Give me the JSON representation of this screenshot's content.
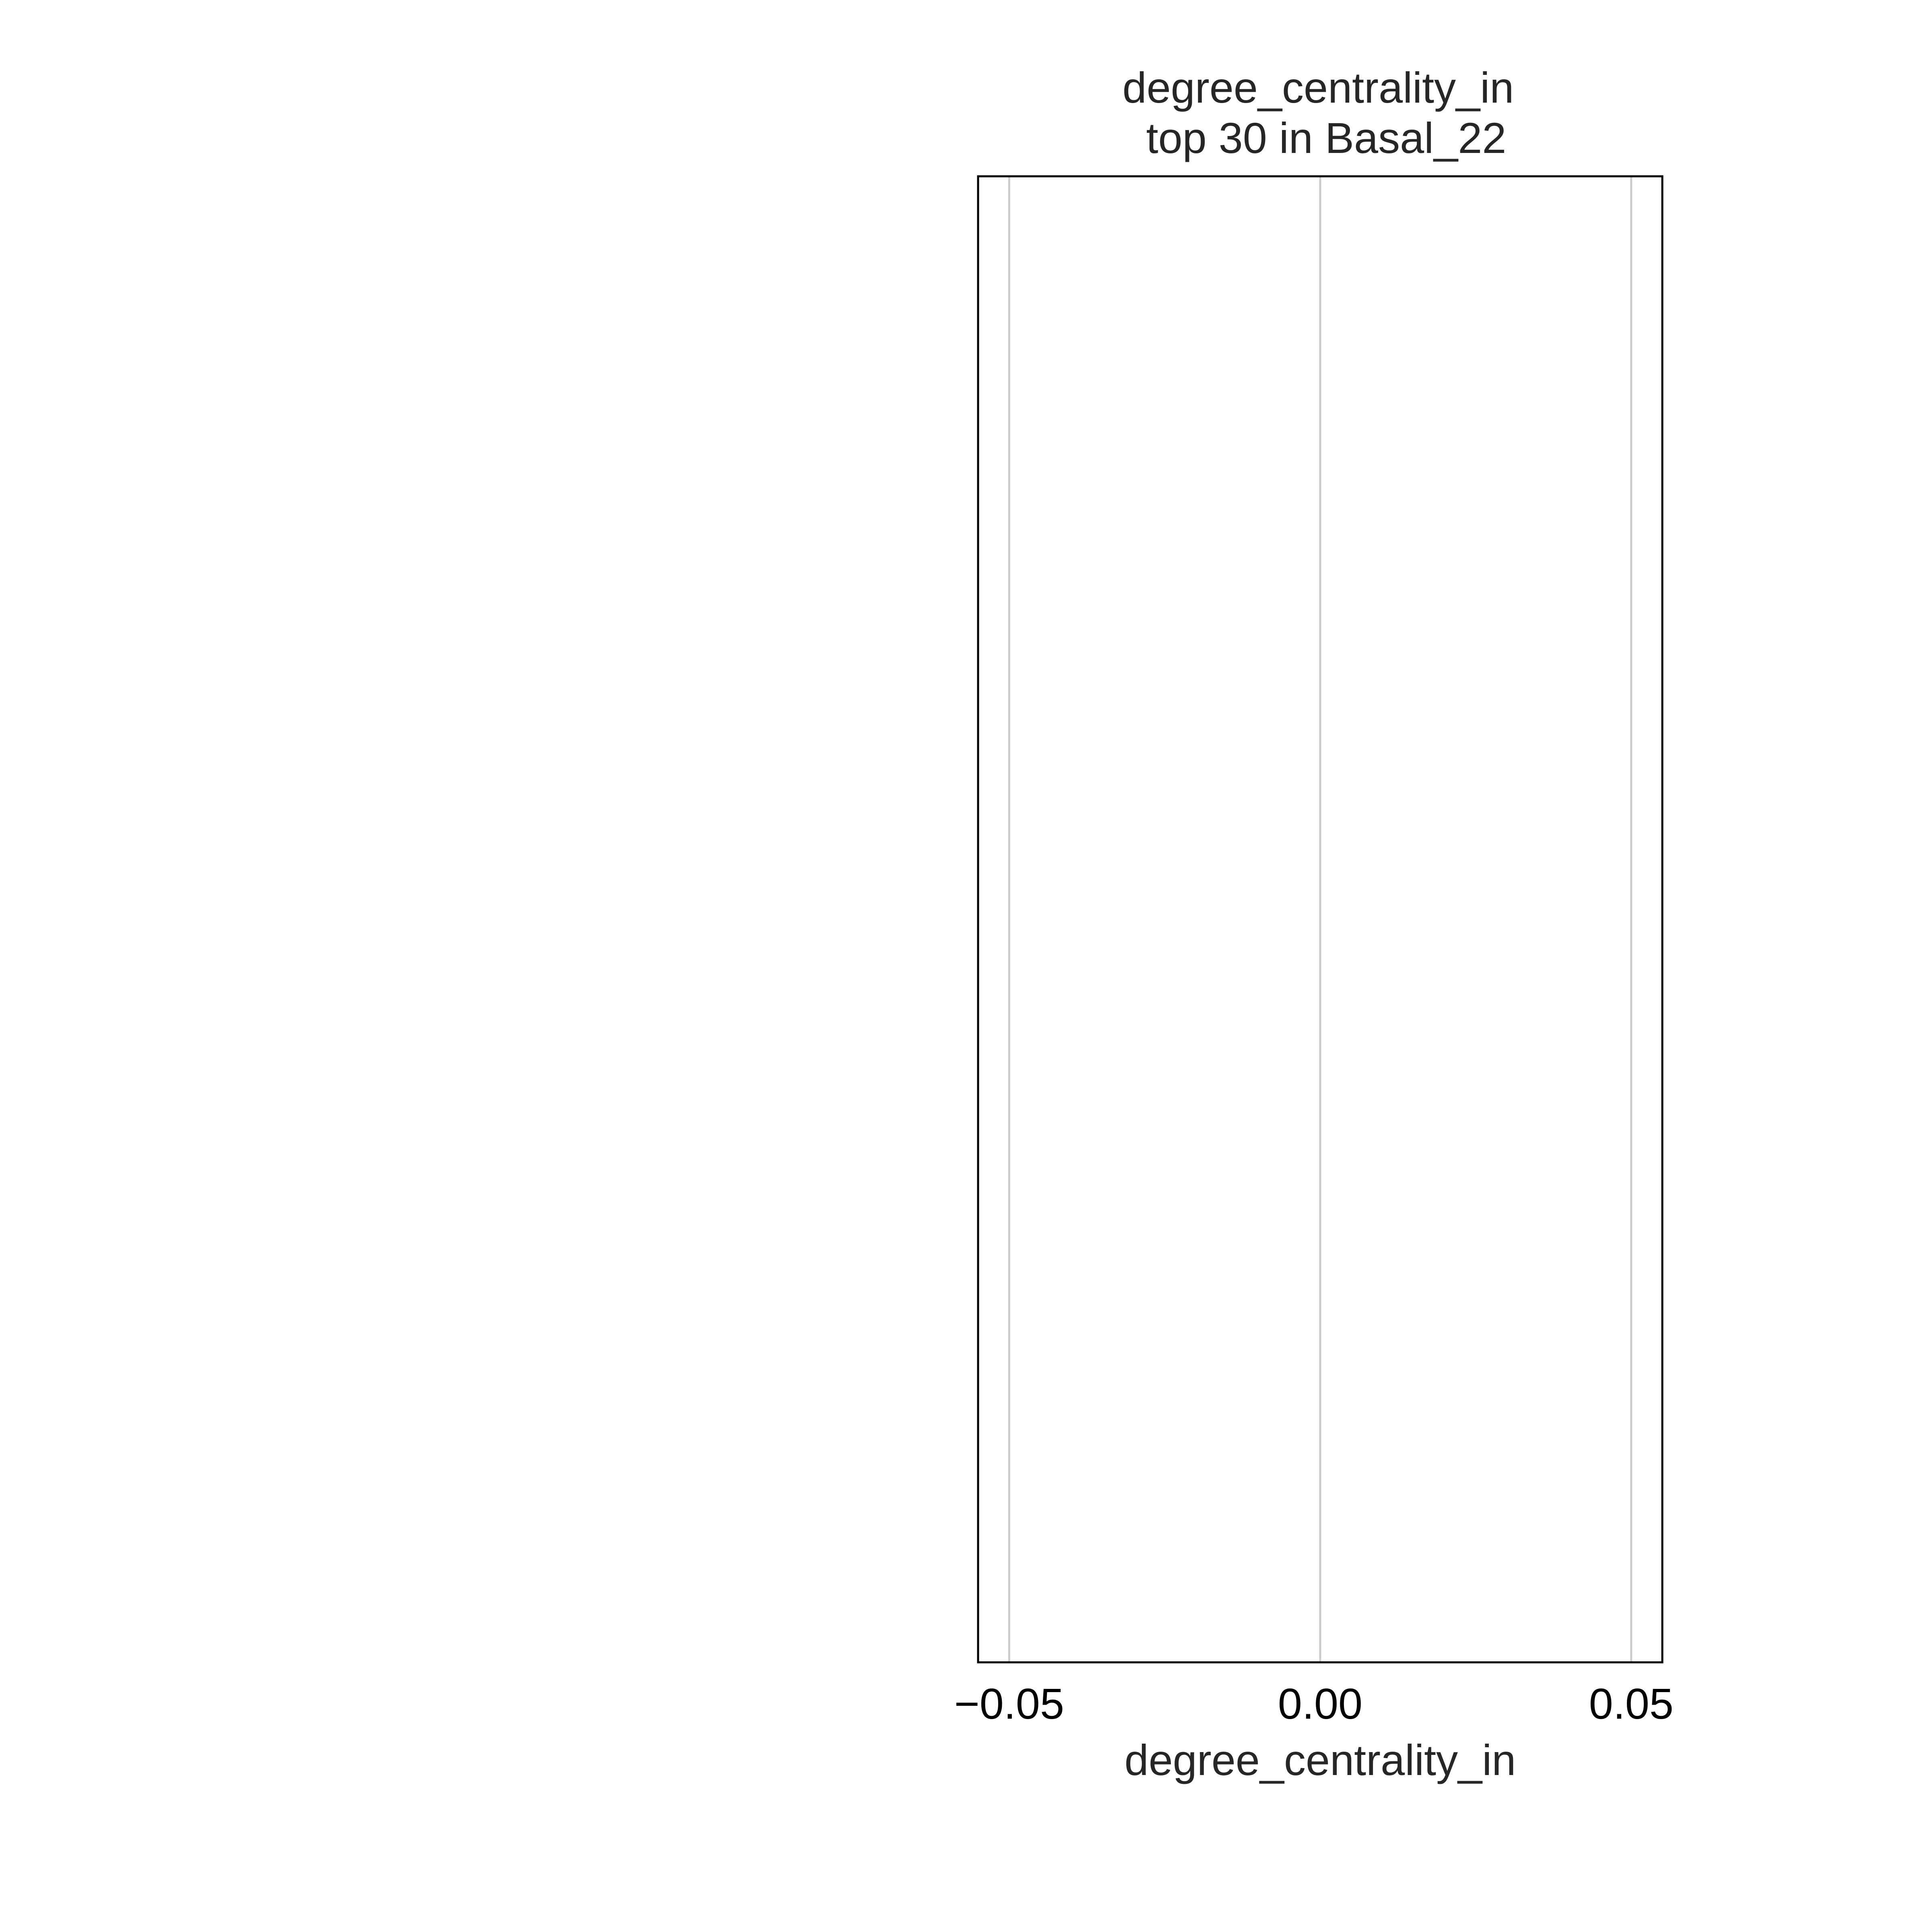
{
  "chart_data": {
    "type": "bar",
    "title": "degree_centrality_in\n top 30 in Basal_22",
    "title_lines": [
      "degree_centrality_in",
      "top 30 in Basal_22"
    ],
    "xlabel": "degree_centrality_in",
    "ylabel": "",
    "orientation": "horizontal",
    "categories": [],
    "values": [],
    "xlim": [
      -0.055,
      0.055
    ],
    "xticks": [
      -0.05,
      0.0,
      0.05
    ],
    "xtick_labels": [
      "−0.05",
      "0.00",
      "0.05"
    ],
    "grid": "vertical",
    "grid_color": "#cccccc",
    "frame_color": "#000000"
  }
}
